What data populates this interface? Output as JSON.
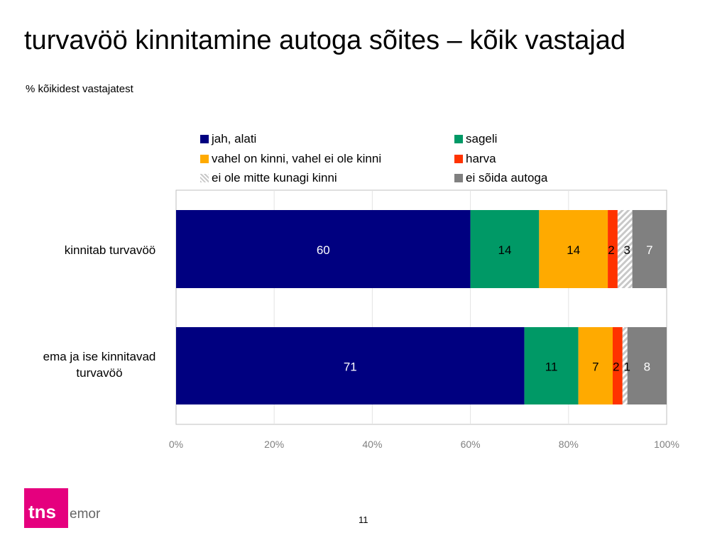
{
  "title": "turvavöö kinnitamine autoga sõites – kõik vastajad",
  "subtitle": "% kõikidest vastajatest",
  "page_number": "11",
  "brand": {
    "mark": "tns",
    "name": "emor",
    "color": "#e5007e"
  },
  "legend": [
    {
      "name": "jah, alati",
      "color": "#000080",
      "pattern": "solid"
    },
    {
      "name": "sageli",
      "color": "#009966",
      "pattern": "solid"
    },
    {
      "name": "vahel on kinni, vahel ei ole kinni",
      "color": "#ffaa00",
      "pattern": "solid"
    },
    {
      "name": "harva",
      "color": "#ff3300",
      "pattern": "solid"
    },
    {
      "name": "ei ole mitte kunagi kinni",
      "color": "#c8c8c8",
      "pattern": "hatched"
    },
    {
      "name": "ei sõida autoga",
      "color": "#808080",
      "pattern": "solid"
    }
  ],
  "chart_data": {
    "type": "bar",
    "orientation": "horizontal",
    "stacked": "percent",
    "categories": [
      "kinnitab turvavöö",
      "ema ja ise kinnitavad turvavöö"
    ],
    "series": [
      {
        "name": "jah, alati",
        "values": [
          60,
          71
        ]
      },
      {
        "name": "sageli",
        "values": [
          14,
          11
        ]
      },
      {
        "name": "vahel on kinni, vahel ei ole kinni",
        "values": [
          14,
          7
        ]
      },
      {
        "name": "harva",
        "values": [
          2,
          2
        ]
      },
      {
        "name": "ei ole mitte kunagi kinni",
        "values": [
          3,
          1
        ]
      },
      {
        "name": "ei sõida autoga",
        "values": [
          7,
          8
        ]
      }
    ],
    "x_ticks": [
      "0%",
      "20%",
      "40%",
      "60%",
      "80%",
      "100%"
    ],
    "xlim": [
      0,
      100
    ],
    "grid": true,
    "legend_position": "top"
  }
}
